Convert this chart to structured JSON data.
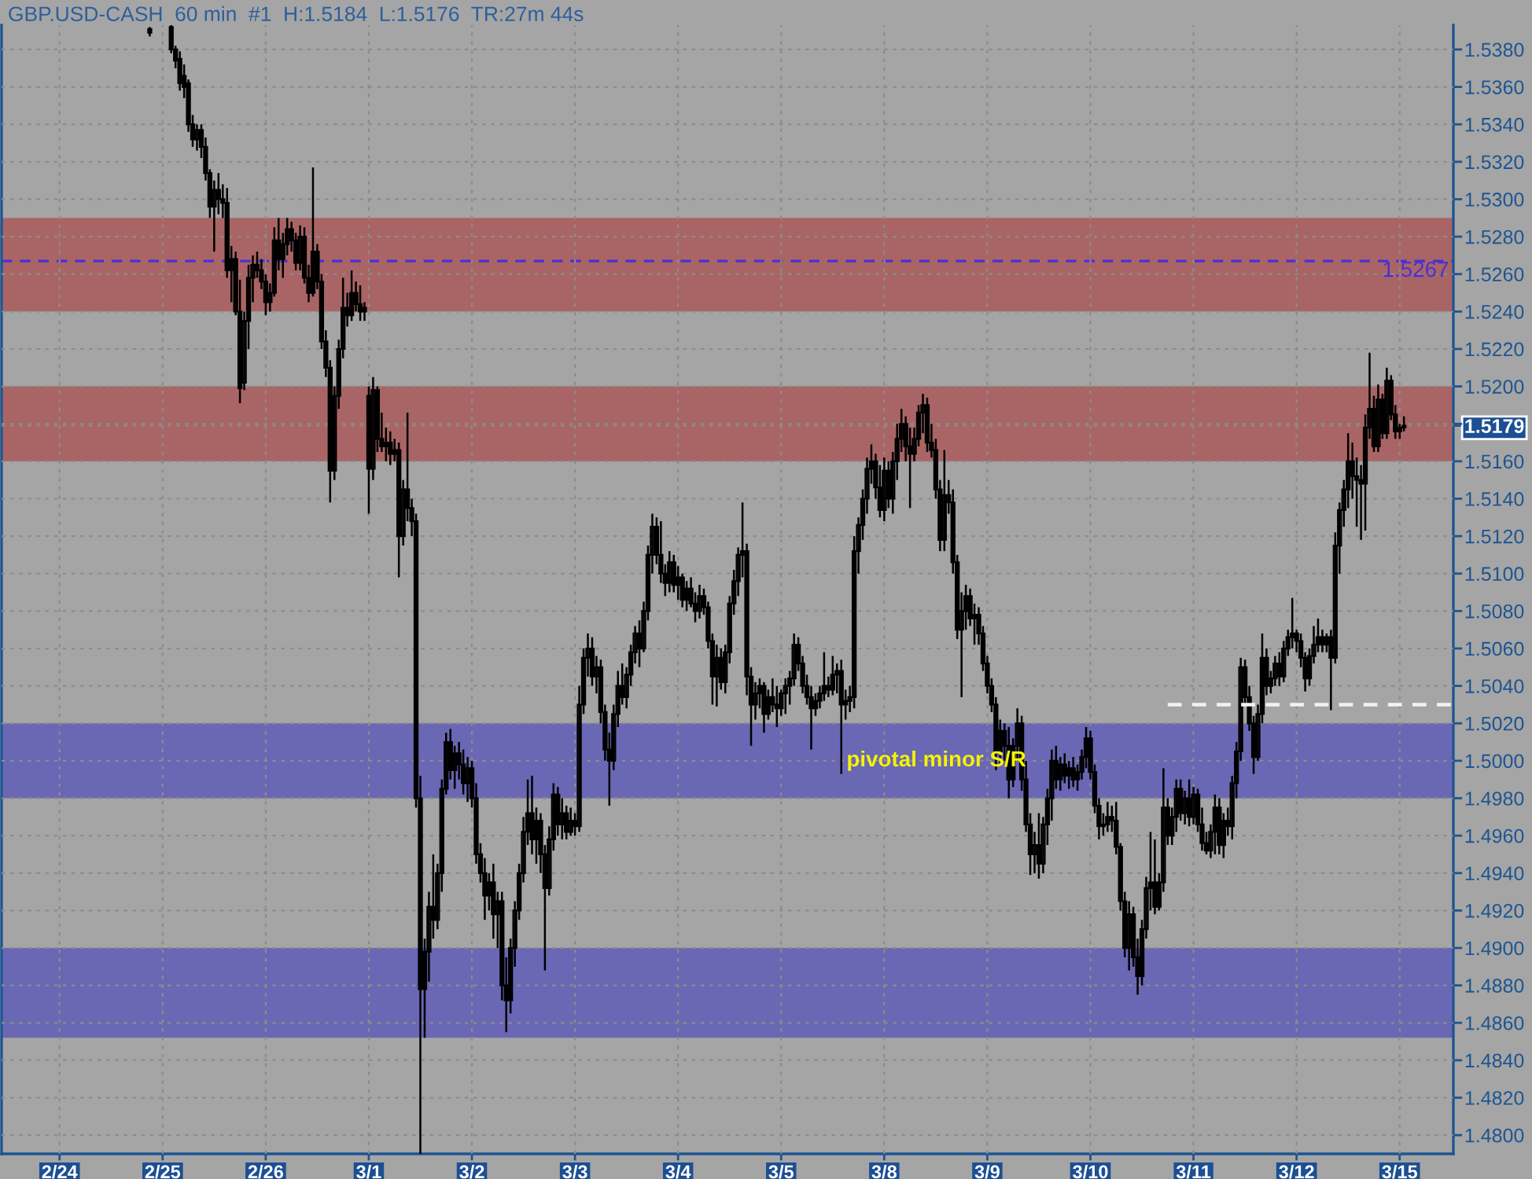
{
  "chart_data": {
    "type": "candlestick",
    "title": "GBP.USD-CASH  60 min  #1  H:1.5184  L:1.5176  TR:27m 44s",
    "categories": [
      null,
      null,
      null,
      null,
      null,
      null,
      null,
      null,
      null,
      null,
      null,
      null,
      null,
      "2/24",
      null,
      null,
      null,
      null,
      null,
      null,
      null,
      null,
      null,
      null,
      null,
      null,
      null,
      null,
      null,
      null,
      null,
      null,
      null,
      null,
      null,
      null,
      null,
      "2/25",
      null,
      null,
      null,
      null,
      null,
      null,
      null,
      null,
      null,
      null,
      null,
      null,
      null,
      null,
      null,
      null,
      null,
      null,
      null,
      null,
      null,
      null,
      null,
      "2/26",
      null,
      null,
      null,
      null,
      null,
      null,
      null,
      null,
      null,
      null,
      null,
      null,
      null,
      null,
      null,
      null,
      null,
      null,
      null,
      null,
      null,
      null,
      null,
      "3/1",
      null,
      null,
      null,
      null,
      null,
      null,
      null,
      null,
      null,
      null,
      null,
      null,
      null,
      null,
      null,
      null,
      null,
      null,
      null,
      null,
      null,
      null,
      null,
      "3/2",
      null,
      null,
      null,
      null,
      null,
      null,
      null,
      null,
      null,
      null,
      null,
      null,
      null,
      null,
      null,
      null,
      null,
      null,
      null,
      null,
      null,
      null,
      null,
      "3/3",
      null,
      null,
      null,
      null,
      null,
      null,
      null,
      null,
      null,
      null,
      null,
      null,
      null,
      null,
      null,
      null,
      null,
      null,
      null,
      null,
      null,
      null,
      null,
      "3/4",
      null,
      null,
      null,
      null,
      null,
      null,
      null,
      null,
      null,
      null,
      null,
      null,
      null,
      null,
      null,
      null,
      null,
      null,
      null,
      null,
      null,
      null,
      null,
      "3/5",
      null,
      null,
      null,
      null,
      null,
      null,
      null,
      null,
      null,
      null,
      null,
      null,
      null,
      null,
      null,
      null,
      null,
      null,
      null,
      null,
      null,
      null,
      null,
      "3/8",
      null,
      null,
      null,
      null,
      null,
      null,
      null,
      null,
      null,
      null,
      null,
      null,
      null,
      null,
      null,
      null,
      null,
      null,
      null,
      null,
      null,
      null,
      null,
      "3/9",
      null,
      null,
      null,
      null,
      null,
      null,
      null,
      null,
      null,
      null,
      null,
      null,
      null,
      null,
      null,
      null,
      null,
      null,
      null,
      null,
      null,
      null,
      null,
      "3/10",
      null,
      null,
      null,
      null,
      null,
      null,
      null,
      null,
      null,
      null,
      null,
      null,
      null,
      null,
      null,
      null,
      null,
      null,
      null,
      null,
      null,
      null,
      null,
      "3/11",
      null,
      null,
      null,
      null,
      null,
      null,
      null,
      null,
      null,
      null,
      null,
      null,
      null,
      null,
      null,
      null,
      null,
      null,
      null,
      null,
      null,
      null,
      null,
      "3/12",
      null,
      null,
      null,
      null,
      null,
      null,
      null,
      null,
      null,
      null,
      null,
      null,
      null,
      null,
      null,
      null,
      null,
      null,
      null,
      null,
      null,
      null,
      null,
      "3/15",
      null,
      null,
      null,
      null,
      null,
      null,
      null,
      null,
      null,
      null,
      null,
      null
    ],
    "ohlc": [
      null,
      null,
      null,
      null,
      null,
      null,
      null,
      null,
      null,
      null,
      null,
      null,
      null,
      null,
      null,
      null,
      null,
      null,
      null,
      null,
      null,
      null,
      null,
      null,
      null,
      null,
      null,
      null,
      null,
      null,
      null,
      null,
      null,
      null,
      [
        1.5391,
        1.5392,
        1.5387,
        1.5389
      ],
      null,
      null,
      null,
      null,
      [
        1.5392,
        1.5393,
        1.5378,
        1.538
      ],
      [
        1.538,
        1.5382,
        1.537,
        1.5374
      ],
      [
        1.5375,
        1.5379,
        1.5358,
        1.5362
      ],
      [
        1.536,
        1.5372,
        1.5354,
        1.5366
      ],
      [
        1.5362,
        1.5364,
        1.5336,
        1.534
      ],
      [
        1.534,
        1.5345,
        1.5328,
        1.5332
      ],
      [
        1.5332,
        1.534,
        1.5326,
        1.5337
      ],
      [
        1.5337,
        1.534,
        1.5322,
        1.5328
      ],
      [
        1.5328,
        1.5333,
        1.531,
        1.5314
      ],
      [
        1.5314,
        1.5316,
        1.529,
        1.5296
      ],
      [
        1.5296,
        1.531,
        1.5272,
        1.5305
      ],
      [
        1.5305,
        1.5314,
        1.5292,
        1.53
      ],
      [
        1.53,
        1.5308,
        1.529,
        1.5298
      ],
      [
        1.5298,
        1.5306,
        1.5258,
        1.5262
      ],
      [
        1.5262,
        1.5275,
        1.5245,
        1.5268
      ],
      [
        1.5268,
        1.5272,
        1.5238,
        1.524
      ],
      [
        1.524,
        1.5257,
        1.5191,
        1.5199
      ],
      [
        1.5202,
        1.524,
        1.5198,
        1.5235
      ],
      [
        1.5235,
        1.5265,
        1.522,
        1.5258
      ],
      [
        1.5258,
        1.527,
        1.5245,
        1.5265
      ],
      [
        1.5265,
        1.5272,
        1.5258,
        1.5262
      ],
      [
        1.5262,
        1.5268,
        1.5252,
        1.5256
      ],
      [
        1.5256,
        1.526,
        1.5238,
        1.5245
      ],
      [
        1.5245,
        1.5255,
        1.524,
        1.525
      ],
      [
        1.525,
        1.5285,
        1.5248,
        1.5278
      ],
      [
        1.5278,
        1.529,
        1.5262,
        1.5268
      ],
      [
        1.5268,
        1.5282,
        1.5258,
        1.5276
      ],
      [
        1.5276,
        1.529,
        1.527,
        1.5284
      ],
      [
        1.5284,
        1.5288,
        1.5272,
        1.5278
      ],
      [
        1.5278,
        1.5282,
        1.5262,
        1.5266
      ],
      [
        1.5266,
        1.5286,
        1.5262,
        1.528
      ],
      [
        1.528,
        1.5285,
        1.5255,
        1.5258
      ],
      [
        1.5258,
        1.5265,
        1.5245,
        1.525
      ],
      [
        1.525,
        1.5317,
        1.5248,
        1.5272
      ],
      [
        1.5272,
        1.5276,
        1.5252,
        1.5256
      ],
      [
        1.5256,
        1.526,
        1.522,
        1.5224
      ],
      [
        1.5224,
        1.523,
        1.5205,
        1.521
      ],
      [
        1.521,
        1.5214,
        1.5138,
        1.5155
      ],
      [
        1.5155,
        1.52,
        1.515,
        1.5195
      ],
      [
        1.5195,
        1.5225,
        1.5188,
        1.522
      ],
      [
        1.522,
        1.5258,
        1.5215,
        1.5242
      ],
      [
        1.5242,
        1.525,
        1.5232,
        1.5238
      ],
      [
        1.5238,
        1.5262,
        1.5235,
        1.525
      ],
      [
        1.525,
        1.5256,
        1.524,
        1.5244
      ],
      [
        1.5244,
        1.5254,
        1.5235,
        1.524
      ],
      [
        1.524,
        1.5245,
        1.5235,
        1.5242
      ],
      [
        1.5195,
        1.52,
        1.5132,
        1.5156
      ],
      [
        1.5156,
        1.5205,
        1.515,
        1.5198
      ],
      [
        1.5198,
        1.52,
        1.5165,
        1.5172
      ],
      [
        1.5172,
        1.5186,
        1.5165,
        1.5168
      ],
      [
        1.5168,
        1.5178,
        1.516,
        1.517
      ],
      [
        1.517,
        1.5176,
        1.5158,
        1.5164
      ],
      [
        1.5164,
        1.5172,
        1.516,
        1.5166
      ],
      [
        1.5166,
        1.517,
        1.5098,
        1.512
      ],
      [
        1.512,
        1.515,
        1.5115,
        1.5145
      ],
      [
        1.5145,
        1.5186,
        1.5128,
        1.5135
      ],
      [
        1.5135,
        1.514,
        1.512,
        1.5128
      ],
      [
        1.5128,
        1.5132,
        1.4975,
        1.498
      ],
      [
        1.498,
        1.4992,
        1.479,
        1.4878
      ],
      [
        1.4878,
        1.4905,
        1.4852,
        1.4898
      ],
      [
        1.4898,
        1.493,
        1.4882,
        1.4922
      ],
      [
        1.4922,
        1.495,
        1.4905,
        1.4915
      ],
      [
        1.4915,
        1.4945,
        1.491,
        1.494
      ],
      [
        1.494,
        1.499,
        1.493,
        1.4985
      ],
      [
        1.4985,
        1.5015,
        1.4982,
        1.501
      ],
      [
        1.501,
        1.5017,
        1.499,
        1.4995
      ],
      [
        1.4995,
        1.5008,
        1.4985,
        1.5004
      ],
      [
        1.5004,
        1.501,
        1.499,
        1.4998
      ],
      [
        1.4998,
        1.5006,
        1.4982,
        1.4988
      ],
      [
        1.4988,
        1.5002,
        1.4978,
        1.4996
      ],
      [
        1.4996,
        1.5,
        1.4975,
        1.498
      ],
      [
        1.498,
        1.4988,
        1.4945,
        1.495
      ],
      [
        1.495,
        1.4956,
        1.4935,
        1.494
      ],
      [
        1.494,
        1.4948,
        1.4915,
        1.4928
      ],
      [
        1.4928,
        1.494,
        1.492,
        1.4935
      ],
      [
        1.4935,
        1.4945,
        1.4905,
        1.4918
      ],
      [
        1.4918,
        1.493,
        1.49,
        1.4925
      ],
      [
        1.4925,
        1.493,
        1.4872,
        1.488
      ],
      [
        1.488,
        1.4895,
        1.4855,
        1.4872
      ],
      [
        1.4872,
        1.4905,
        1.4865,
        1.49
      ],
      [
        1.49,
        1.4925,
        1.489,
        1.492
      ],
      [
        1.492,
        1.4945,
        1.4915,
        1.494
      ],
      [
        1.494,
        1.497,
        1.4935,
        1.4962
      ],
      [
        1.4962,
        1.499,
        1.4955,
        1.4972
      ],
      [
        1.4972,
        1.4992,
        1.495,
        1.4958
      ],
      [
        1.4958,
        1.4975,
        1.4945,
        1.4968
      ],
      [
        1.4968,
        1.4972,
        1.494,
        1.495
      ],
      [
        1.495,
        1.4955,
        1.4888,
        1.4932
      ],
      [
        1.4932,
        1.4965,
        1.4928,
        1.4958
      ],
      [
        1.4958,
        1.4988,
        1.4952,
        1.4982
      ],
      [
        1.4982,
        1.4986,
        1.496,
        1.4966
      ],
      [
        1.4966,
        1.498,
        1.4958,
        1.4972
      ],
      [
        1.4972,
        1.4976,
        1.4958,
        1.4962
      ],
      [
        1.4962,
        1.4975,
        1.496,
        1.4968
      ],
      [
        1.4968,
        1.4972,
        1.496,
        1.4965
      ],
      [
        1.4965,
        1.504,
        1.4962,
        1.503
      ],
      [
        1.503,
        1.506,
        1.5025,
        1.5055
      ],
      [
        1.5055,
        1.5068,
        1.5045,
        1.506
      ],
      [
        1.506,
        1.5066,
        1.504,
        1.5045
      ],
      [
        1.5045,
        1.5056,
        1.5036,
        1.505
      ],
      [
        1.505,
        1.5054,
        1.502,
        1.5026
      ],
      [
        1.5026,
        1.503,
        1.5,
        1.5006
      ],
      [
        1.5006,
        1.5015,
        1.4976,
        1.5
      ],
      [
        1.5,
        1.503,
        1.4995,
        1.5025
      ],
      [
        1.5025,
        1.5048,
        1.5018,
        1.504
      ],
      [
        1.504,
        1.5052,
        1.503,
        1.5034
      ],
      [
        1.5034,
        1.505,
        1.5028,
        1.5046
      ],
      [
        1.5046,
        1.5062,
        1.504,
        1.5058
      ],
      [
        1.5058,
        1.5072,
        1.5052,
        1.5068
      ],
      [
        1.5068,
        1.5075,
        1.505,
        1.506
      ],
      [
        1.506,
        1.5085,
        1.5058,
        1.508
      ],
      [
        1.508,
        1.5115,
        1.5075,
        1.511
      ],
      [
        1.511,
        1.5132,
        1.51,
        1.5125
      ],
      [
        1.5125,
        1.513,
        1.5105,
        1.511
      ],
      [
        1.511,
        1.5128,
        1.5095,
        1.51
      ],
      [
        1.51,
        1.5105,
        1.5088,
        1.5095
      ],
      [
        1.5095,
        1.5112,
        1.509,
        1.5106
      ],
      [
        1.5106,
        1.511,
        1.509,
        1.5094
      ],
      [
        1.5094,
        1.5104,
        1.5086,
        1.5098
      ],
      [
        1.5098,
        1.51,
        1.5082,
        1.5086
      ],
      [
        1.5086,
        1.5096,
        1.508,
        1.5092
      ],
      [
        1.5092,
        1.5098,
        1.5082,
        1.5084
      ],
      [
        1.5084,
        1.509,
        1.5074,
        1.508
      ],
      [
        1.508,
        1.5094,
        1.5076,
        1.5088
      ],
      [
        1.5088,
        1.5092,
        1.5078,
        1.5082
      ],
      [
        1.5082,
        1.5085,
        1.506,
        1.5064
      ],
      [
        1.5064,
        1.5068,
        1.503,
        1.5045
      ],
      [
        1.5045,
        1.5062,
        1.5029,
        1.5055
      ],
      [
        1.5055,
        1.506,
        1.5038,
        1.5042
      ],
      [
        1.5042,
        1.5062,
        1.5036,
        1.5058
      ],
      [
        1.5058,
        1.5088,
        1.5052,
        1.5084
      ],
      [
        1.5084,
        1.5102,
        1.5078,
        1.5096
      ],
      [
        1.5096,
        1.5114,
        1.5088,
        1.511
      ],
      [
        1.511,
        1.5138,
        1.5098,
        1.5112
      ],
      [
        1.5112,
        1.5116,
        1.5035,
        1.5045
      ],
      [
        1.5045,
        1.505,
        1.5008,
        1.503
      ],
      [
        1.503,
        1.5042,
        1.5022,
        1.5036
      ],
      [
        1.5036,
        1.5044,
        1.5028,
        1.504
      ],
      [
        1.504,
        1.5042,
        1.5015,
        1.5025
      ],
      [
        1.5025,
        1.5038,
        1.5022,
        1.5034
      ],
      [
        1.5034,
        1.5044,
        1.5026,
        1.503
      ],
      [
        1.503,
        1.504,
        1.5018,
        1.5028
      ],
      [
        1.5028,
        1.5038,
        1.5024,
        1.5036
      ],
      [
        1.5036,
        1.5044,
        1.5025,
        1.504
      ],
      [
        1.504,
        1.5048,
        1.503,
        1.5044
      ],
      [
        1.5044,
        1.5068,
        1.504,
        1.5062
      ],
      [
        1.5062,
        1.5066,
        1.5048,
        1.5052
      ],
      [
        1.5052,
        1.5056,
        1.5036,
        1.504
      ],
      [
        1.504,
        1.5046,
        1.503,
        1.5034
      ],
      [
        1.5034,
        1.504,
        1.5006,
        1.5028
      ],
      [
        1.5028,
        1.5036,
        1.5024,
        1.5032
      ],
      [
        1.5032,
        1.504,
        1.5028,
        1.5036
      ],
      [
        1.5036,
        1.5058,
        1.5032,
        1.504
      ],
      [
        1.504,
        1.5045,
        1.5034,
        1.5038
      ],
      [
        1.5038,
        1.5056,
        1.5035,
        1.5046
      ],
      [
        1.5046,
        1.5052,
        1.5036,
        1.5048
      ],
      [
        1.5048,
        1.5054,
        1.4993,
        1.503
      ],
      [
        1.503,
        1.5038,
        1.5022,
        1.5032
      ],
      [
        1.5032,
        1.504,
        1.5026,
        1.5034
      ],
      [
        1.5034,
        1.512,
        1.5028,
        1.5112
      ],
      [
        1.5112,
        1.513,
        1.51,
        1.5126
      ],
      [
        1.5126,
        1.5145,
        1.5118,
        1.514
      ],
      [
        1.514,
        1.5162,
        1.5132,
        1.5156
      ],
      [
        1.5156,
        1.5169,
        1.5148,
        1.516
      ],
      [
        1.516,
        1.5164,
        1.514,
        1.5146
      ],
      [
        1.5146,
        1.5158,
        1.513,
        1.5134
      ],
      [
        1.5134,
        1.5162,
        1.5128,
        1.5155
      ],
      [
        1.5155,
        1.516,
        1.5135,
        1.514
      ],
      [
        1.514,
        1.5165,
        1.5132,
        1.516
      ],
      [
        1.516,
        1.518,
        1.515,
        1.5172
      ],
      [
        1.5172,
        1.5188,
        1.5165,
        1.518
      ],
      [
        1.518,
        1.5184,
        1.516,
        1.5168
      ],
      [
        1.5168,
        1.5178,
        1.5135,
        1.5164
      ],
      [
        1.5164,
        1.5178,
        1.516,
        1.5172
      ],
      [
        1.5172,
        1.519,
        1.5168,
        1.5186
      ],
      [
        1.5186,
        1.5196,
        1.5175,
        1.519
      ],
      [
        1.519,
        1.5194,
        1.5165,
        1.517
      ],
      [
        1.517,
        1.518,
        1.5162,
        1.5166
      ],
      [
        1.5166,
        1.5172,
        1.514,
        1.5145
      ],
      [
        1.5145,
        1.515,
        1.5112,
        1.5118
      ],
      [
        1.5118,
        1.5166,
        1.5112,
        1.5142
      ],
      [
        1.5142,
        1.515,
        1.5132,
        1.5138
      ],
      [
        1.5138,
        1.5145,
        1.51,
        1.5106
      ],
      [
        1.5106,
        1.511,
        1.5065,
        1.507
      ],
      [
        1.507,
        1.509,
        1.5034,
        1.508
      ],
      [
        1.508,
        1.5094,
        1.507,
        1.5088
      ],
      [
        1.5088,
        1.5092,
        1.5072,
        1.5076
      ],
      [
        1.5076,
        1.5084,
        1.5062,
        1.5078
      ],
      [
        1.5078,
        1.5082,
        1.5062,
        1.5068
      ],
      [
        1.5068,
        1.5072,
        1.5048,
        1.5052
      ],
      [
        1.5052,
        1.5056,
        1.5036,
        1.504
      ],
      [
        1.504,
        1.5044,
        1.5026,
        1.503
      ],
      [
        1.503,
        1.5034,
        1.4995,
        1.5005
      ],
      [
        1.5005,
        1.5022,
        1.4998,
        1.5016
      ],
      [
        1.5016,
        1.502,
        1.5,
        1.5008
      ],
      [
        1.5008,
        1.5018,
        1.498,
        1.499
      ],
      [
        1.499,
        1.5012,
        1.4986,
        1.5008
      ],
      [
        1.5008,
        1.5028,
        1.5,
        1.502
      ],
      [
        1.502,
        1.5024,
        1.4984,
        1.499
      ],
      [
        1.499,
        1.5,
        1.4962,
        1.4966
      ],
      [
        1.4966,
        1.4972,
        1.4939,
        1.495
      ],
      [
        1.495,
        1.4962,
        1.494,
        1.4955
      ],
      [
        1.4955,
        1.4972,
        1.4937,
        1.4945
      ],
      [
        1.4945,
        1.497,
        1.494,
        1.4966
      ],
      [
        1.4966,
        1.4985,
        1.4955,
        1.498
      ],
      [
        1.498,
        1.5006,
        1.4968,
        1.5
      ],
      [
        1.5,
        1.5008,
        1.4985,
        1.499
      ],
      [
        1.499,
        1.5002,
        1.4984,
        1.4998
      ],
      [
        1.4998,
        1.5004,
        1.4988,
        1.4992
      ],
      [
        1.4992,
        1.5,
        1.4985,
        1.4996
      ],
      [
        1.4996,
        1.5002,
        1.4986,
        1.499
      ],
      [
        1.499,
        1.4998,
        1.4984,
        1.4994
      ],
      [
        1.4994,
        1.5006,
        1.499,
        1.5002
      ],
      [
        1.5002,
        1.5018,
        1.4996,
        1.5012
      ],
      [
        1.5012,
        1.5016,
        1.499,
        1.4994
      ],
      [
        1.4994,
        1.4998,
        1.4972,
        1.4976
      ],
      [
        1.4976,
        1.498,
        1.4958,
        1.4965
      ],
      [
        1.4965,
        1.4972,
        1.496,
        1.4966
      ],
      [
        1.4966,
        1.4978,
        1.4962,
        1.497
      ],
      [
        1.497,
        1.4976,
        1.4962,
        1.4968
      ],
      [
        1.4968,
        1.4978,
        1.495,
        1.4954
      ],
      [
        1.4954,
        1.4956,
        1.492,
        1.4925
      ],
      [
        1.4925,
        1.493,
        1.4895,
        1.49
      ],
      [
        1.49,
        1.4925,
        1.4888,
        1.4918
      ],
      [
        1.4918,
        1.4922,
        1.489,
        1.4895
      ],
      [
        1.4895,
        1.4905,
        1.4875,
        1.4885
      ],
      [
        1.4885,
        1.4915,
        1.488,
        1.491
      ],
      [
        1.491,
        1.4938,
        1.4905,
        1.4932
      ],
      [
        1.4932,
        1.4962,
        1.492,
        1.4935
      ],
      [
        1.4935,
        1.4958,
        1.4918,
        1.4922
      ],
      [
        1.4922,
        1.494,
        1.492,
        1.4935
      ],
      [
        1.4935,
        1.4996,
        1.493,
        1.4975
      ],
      [
        1.4975,
        1.498,
        1.4955,
        1.496
      ],
      [
        1.496,
        1.4975,
        1.4955,
        1.497
      ],
      [
        1.497,
        1.499,
        1.4962,
        1.4985
      ],
      [
        1.4985,
        1.499,
        1.4968,
        1.4972
      ],
      [
        1.4972,
        1.4984,
        1.4966,
        1.498
      ],
      [
        1.498,
        1.499,
        1.4965,
        1.497
      ],
      [
        1.497,
        1.4986,
        1.4966,
        1.4982
      ],
      [
        1.4982,
        1.4985,
        1.4962,
        1.4966
      ],
      [
        1.4966,
        1.4975,
        1.4952,
        1.4956
      ],
      [
        1.4956,
        1.4962,
        1.495,
        1.4952
      ],
      [
        1.4952,
        1.4966,
        1.4948,
        1.4962
      ],
      [
        1.4962,
        1.4982,
        1.495,
        1.4975
      ],
      [
        1.4975,
        1.498,
        1.495,
        1.4955
      ],
      [
        1.4955,
        1.4972,
        1.4948,
        1.4968
      ],
      [
        1.4968,
        1.4975,
        1.496,
        1.4965
      ],
      [
        1.4965,
        1.4992,
        1.4958,
        1.4988
      ],
      [
        1.4988,
        1.501,
        1.498,
        1.5005
      ],
      [
        1.5005,
        1.5055,
        1.5,
        1.505
      ],
      [
        1.505,
        1.5054,
        1.503,
        1.5034
      ],
      [
        1.5034,
        1.504,
        1.5016,
        1.502
      ],
      [
        1.502,
        1.5024,
        1.4993,
        1.5002
      ],
      [
        1.5002,
        1.503,
        1.5,
        1.5025
      ],
      [
        1.5025,
        1.5068,
        1.502,
        1.5055
      ],
      [
        1.5055,
        1.506,
        1.5035,
        1.504
      ],
      [
        1.504,
        1.5048,
        1.5036,
        1.5044
      ],
      [
        1.5044,
        1.5056,
        1.504,
        1.5052
      ],
      [
        1.5052,
        1.5058,
        1.504,
        1.5045
      ],
      [
        1.5045,
        1.5064,
        1.5042,
        1.506
      ],
      [
        1.506,
        1.507,
        1.5056,
        1.5066
      ],
      [
        1.5066,
        1.5087,
        1.506,
        1.5068
      ],
      [
        1.5068,
        1.507,
        1.5058,
        1.5064
      ],
      [
        1.5064,
        1.5068,
        1.505,
        1.5055
      ],
      [
        1.5055,
        1.5058,
        1.5037,
        1.5044
      ],
      [
        1.5044,
        1.506,
        1.504,
        1.5056
      ],
      [
        1.5056,
        1.5072,
        1.5052,
        1.5062
      ],
      [
        1.5062,
        1.5076,
        1.5058,
        1.5066
      ],
      [
        1.5066,
        1.507,
        1.5058,
        1.5062
      ],
      [
        1.5062,
        1.5068,
        1.5058,
        1.5066
      ],
      [
        1.5066,
        1.507,
        1.5027,
        1.5055
      ],
      [
        1.5055,
        1.5122,
        1.5052,
        1.5115
      ],
      [
        1.5115,
        1.5138,
        1.51,
        1.5134
      ],
      [
        1.5134,
        1.515,
        1.5125,
        1.5145
      ],
      [
        1.5145,
        1.5175,
        1.5135,
        1.516
      ],
      [
        1.516,
        1.517,
        1.514,
        1.5152
      ],
      [
        1.5152,
        1.5162,
        1.5125,
        1.515
      ],
      [
        1.515,
        1.5158,
        1.5118,
        1.5148
      ],
      [
        1.5148,
        1.5185,
        1.5123,
        1.5178
      ],
      [
        1.5178,
        1.5218,
        1.5172,
        1.5188
      ],
      [
        1.5188,
        1.5195,
        1.5165,
        1.5168
      ],
      [
        1.5168,
        1.5201,
        1.5165,
        1.5193
      ],
      [
        1.5193,
        1.5196,
        1.5172,
        1.5175
      ],
      [
        1.5175,
        1.521,
        1.5172,
        1.5203
      ],
      [
        1.5203,
        1.5206,
        1.5182,
        1.5185
      ],
      [
        1.5185,
        1.519,
        1.5172,
        1.5176
      ],
      [
        1.5176,
        1.518,
        1.5172,
        1.5178
      ],
      [
        1.5178,
        1.5184,
        1.5176,
        1.5179
      ],
      null,
      null,
      null,
      null,
      null,
      null,
      null,
      null,
      null,
      null,
      null
    ],
    "series": [
      {
        "type": "line",
        "color": "#f2f2f2",
        "line_style": "dashed",
        "values": [
          null,
          null,
          null,
          null,
          null,
          null,
          null,
          null,
          null,
          null,
          null,
          null,
          null,
          null,
          null,
          null,
          null,
          null,
          null,
          null,
          null,
          null,
          null,
          null,
          null,
          null,
          null,
          null,
          null,
          null,
          null,
          null,
          null,
          null,
          null,
          null,
          null,
          null,
          null,
          null,
          null,
          null,
          null,
          null,
          null,
          null,
          null,
          null,
          null,
          null,
          null,
          null,
          null,
          null,
          null,
          null,
          null,
          null,
          null,
          null,
          null,
          null,
          null,
          null,
          null,
          null,
          null,
          null,
          null,
          null,
          null,
          null,
          null,
          null,
          null,
          null,
          null,
          null,
          null,
          null,
          null,
          null,
          null,
          null,
          null,
          null,
          null,
          null,
          null,
          null,
          null,
          null,
          null,
          null,
          null,
          null,
          null,
          null,
          null,
          null,
          null,
          null,
          null,
          null,
          null,
          null,
          null,
          null,
          null,
          null,
          null,
          null,
          null,
          null,
          null,
          null,
          null,
          null,
          null,
          null,
          null,
          null,
          null,
          null,
          null,
          null,
          null,
          null,
          null,
          null,
          null,
          null,
          null,
          null,
          null,
          null,
          null,
          null,
          null,
          null,
          null,
          null,
          null,
          null,
          null,
          null,
          null,
          null,
          null,
          null,
          null,
          null,
          null,
          null,
          null,
          null,
          null,
          null,
          null,
          null,
          null,
          null,
          null,
          null,
          null,
          null,
          null,
          null,
          null,
          null,
          null,
          null,
          null,
          null,
          null,
          null,
          null,
          null,
          null,
          null,
          null,
          null,
          null,
          null,
          null,
          null,
          null,
          null,
          null,
          null,
          null,
          null,
          null,
          null,
          null,
          null,
          null,
          null,
          null,
          null,
          null,
          null,
          null,
          null,
          null,
          null,
          null,
          null,
          null,
          null,
          null,
          null,
          null,
          null,
          null,
          null,
          null,
          null,
          null,
          null,
          null,
          null,
          null,
          null,
          null,
          null,
          null,
          null,
          null,
          null,
          null,
          null,
          null,
          null,
          null,
          null,
          null,
          null,
          null,
          null,
          null,
          null,
          null,
          null,
          null,
          null,
          null,
          null,
          null,
          null,
          null,
          null,
          null,
          null,
          null,
          null,
          null,
          null,
          null,
          null,
          null,
          null,
          null,
          null,
          null,
          null,
          null,
          null,
          null,
          null,
          null,
          1.503,
          1.503,
          1.503,
          1.503,
          1.503,
          1.503,
          1.503,
          1.503,
          1.503,
          1.503,
          1.503,
          1.503,
          1.503,
          1.503,
          1.503,
          1.503,
          1.503,
          1.503,
          1.503,
          1.503,
          1.503,
          1.503,
          1.503,
          1.503,
          1.503,
          1.503,
          1.503,
          1.503,
          1.503,
          1.503,
          1.503,
          1.503,
          1.503,
          1.503,
          1.503,
          1.503,
          1.503,
          1.503,
          1.503,
          1.503,
          1.503,
          1.503,
          1.503,
          1.503,
          1.503,
          1.503,
          1.503,
          1.503,
          1.503,
          1.503,
          1.503,
          1.503,
          1.503,
          1.503,
          1.503,
          1.503,
          1.503,
          1.503,
          1.503,
          1.503,
          1.503,
          1.503,
          1.503,
          1.503,
          1.503,
          1.503,
          1.503
        ]
      }
    ],
    "bands": [
      {
        "axis": "y",
        "from": 1.524,
        "to": 1.529,
        "color": "#a96565"
      },
      {
        "axis": "y",
        "from": 1.516,
        "to": 1.52,
        "color": "#a96565"
      },
      {
        "axis": "y",
        "from": 1.498,
        "to": 1.502,
        "color": "#6a67b4",
        "label": "pivotal minor S/R"
      },
      {
        "axis": "y",
        "from": 1.4852,
        "to": 1.49,
        "color": "#6a67b4"
      }
    ],
    "ref_lines": [
      {
        "axis": "y",
        "value": 1.5267,
        "label": "1.5267",
        "color": "#4a2fd8",
        "line_style": "dashed"
      }
    ],
    "ylim": [
      1.479,
      1.5393
    ],
    "yticks": [
      {
        "value": 1.48,
        "label": "1.4800"
      },
      {
        "value": 1.482,
        "label": "1.4820"
      },
      {
        "value": 1.484,
        "label": "1.4840"
      },
      {
        "value": 1.486,
        "label": "1.4860"
      },
      {
        "value": 1.488,
        "label": "1.4880"
      },
      {
        "value": 1.49,
        "label": "1.4900"
      },
      {
        "value": 1.492,
        "label": "1.4920"
      },
      {
        "value": 1.494,
        "label": "1.4940"
      },
      {
        "value": 1.496,
        "label": "1.4960"
      },
      {
        "value": 1.498,
        "label": "1.4980"
      },
      {
        "value": 1.5,
        "label": "1.5000"
      },
      {
        "value": 1.502,
        "label": "1.5020"
      },
      {
        "value": 1.504,
        "label": "1.5040"
      },
      {
        "value": 1.506,
        "label": "1.5060"
      },
      {
        "value": 1.508,
        "label": "1.5080"
      },
      {
        "value": 1.51,
        "label": "1.5100"
      },
      {
        "value": 1.512,
        "label": "1.5120"
      },
      {
        "value": 1.514,
        "label": "1.5140"
      },
      {
        "value": 1.516,
        "label": "1.5160"
      },
      {
        "value": 1.5179,
        "label": "1.5179"
      },
      {
        "value": 1.518,
        "label": null
      },
      {
        "value": 1.52,
        "label": "1.5200"
      },
      {
        "value": 1.522,
        "label": "1.5220"
      },
      {
        "value": 1.524,
        "label": "1.5240"
      },
      {
        "value": 1.526,
        "label": "1.5260"
      },
      {
        "value": 1.528,
        "label": "1.5280"
      },
      {
        "value": 1.53,
        "label": "1.5300"
      },
      {
        "value": 1.532,
        "label": "1.5320"
      },
      {
        "value": 1.534,
        "label": "1.5340"
      },
      {
        "value": 1.536,
        "label": "1.5360"
      },
      {
        "value": 1.538,
        "label": "1.5380"
      }
    ],
    "grid": true
  }
}
